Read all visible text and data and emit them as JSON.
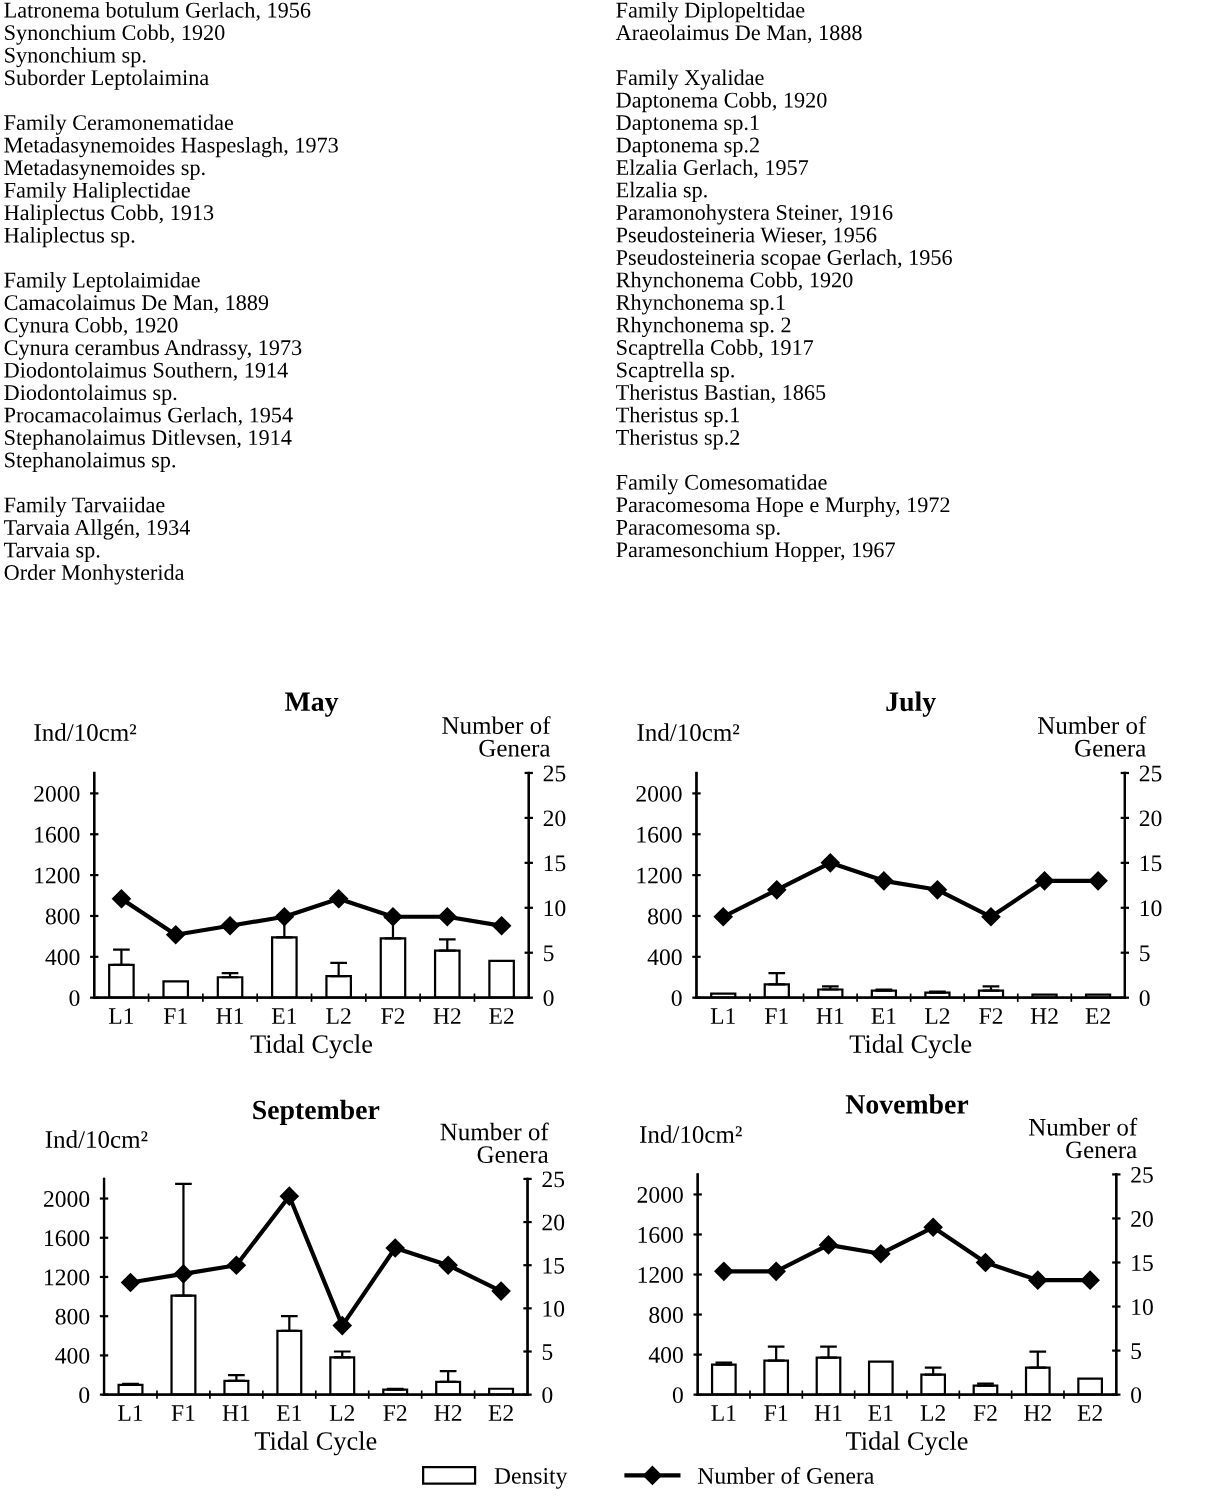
{
  "chart_data": [
    {
      "type": "other",
      "annotations": [
        "Latronema botulum Gerlach, 1956\nSynonchium Cobb, 1920\nSynonchium sp.\nSuborder Leptolaimina\n\nFamily Ceramonematidae\nMetadasynemoides Haspeslagh, 1973\nMetadasynemoides sp.\nFamily Haliplectidae\nHaliplectus Cobb, 1913\nHaliplectus sp.\n\nFamily Leptolaimidae\nCamacolaimus De Man, 1889\nCynura Cobb, 1920\nCynura cerambus Andrassy, 1973\nDiodontolaimus Southern, 1914\nDiodontolaimus sp.\nProcamacolaimus Gerlach, 1954\nStephanolaimus Ditlevsen, 1914\nStephanolaimus sp.\n\nFamily Tarvaiidae\nTarvaia Allgén, 1934\nTarvaia sp.\nOrder Monhysterida",
        "Family Diplopeltidae\nAraeolaimus De Man, 1888\n\nFamily Xyalidae\nDaptonema Cobb, 1920\nDaptonema sp.1\nDaptonema sp.2\nElzalia Gerlach, 1957\nElzalia sp.\nParamonohystera Steiner, 1916\nPseudosteineria Wieser, 1956\nPseudosteineria scopae Gerlach, 1956\nRhynchonema Cobb, 1920\nRhynchonema sp.1\nRhynchonema sp. 2\nScaptrella Cobb, 1917\nScaptrella sp.\nTheristus Bastian, 1865\nTheristus sp.1\nTheristus sp.2\n\nFamily Comesomatidae\nParacomesoma Hope e Murphy, 1972\nParacomesoma sp.\nParamesonchium Hopper, 1967"
      ]
    },
    {
      "type": "bar",
      "title": "May",
      "xlabel": "Tidal Cycle",
      "ylabel": "Ind/10cm²",
      "y2label": "Number of\nGenera",
      "categories": [
        "L1",
        "F1",
        "H1",
        "E1",
        "L2",
        "F2",
        "H2",
        "E2"
      ],
      "series": [
        {
          "name": "Density",
          "type": "bar",
          "color": "#ffffff",
          "values": [
            320,
            160,
            200,
            590,
            210,
            580,
            460,
            360
          ],
          "errors": [
            [
              320,
              470
            ],
            null,
            [
              200,
              240
            ],
            [
              590,
              800
            ],
            [
              210,
              340
            ],
            [
              580,
              780
            ],
            [
              460,
              570
            ],
            null
          ]
        },
        {
          "name": "Number of Genera",
          "type": "line",
          "axis": "y2",
          "color": "#000000",
          "values": [
            11,
            7,
            8,
            9,
            11,
            9,
            9,
            8
          ]
        }
      ],
      "ylim": [
        0,
        2200
      ],
      "yticks": [
        0,
        400,
        800,
        1200,
        1600,
        2000
      ],
      "y2lim": [
        0,
        25
      ],
      "y2ticks": [
        0,
        5,
        10,
        15,
        20,
        25
      ],
      "marker": "diamond",
      "line_style": "solid",
      "grid": false,
      "legend": "bottom"
    },
    {
      "type": "bar",
      "title": "July",
      "xlabel": "Tidal Cycle",
      "ylabel": "Ind/10cm²",
      "y2label": "Number of\nGenera",
      "categories": [
        "L1",
        "F1",
        "H1",
        "E1",
        "L2",
        "F2",
        "H2",
        "E2"
      ],
      "series": [
        {
          "type": "bar",
          "color": "#ffffff",
          "values": [
            40,
            130,
            80,
            70,
            50,
            70,
            30,
            30
          ],
          "errors": [
            null,
            [
              130,
              240
            ],
            [
              80,
              110
            ],
            [
              70,
              80
            ],
            [
              50,
              60
            ],
            [
              70,
              110
            ],
            null,
            null
          ]
        },
        {
          "type": "line",
          "axis": "y2",
          "color": "#000000",
          "values": [
            9,
            12,
            15,
            13,
            12,
            9,
            13,
            13
          ]
        }
      ],
      "ylim": [
        0,
        2200
      ],
      "yticks": [
        0,
        400,
        800,
        1200,
        1600,
        2000
      ],
      "y2lim": [
        0,
        25
      ],
      "y2ticks": [
        0,
        5,
        10,
        15,
        20,
        25
      ],
      "marker": "diamond",
      "line_style": "solid",
      "grid": false
    },
    {
      "type": "bar",
      "title": "September",
      "xlabel": "Tidal Cycle",
      "ylabel": "Ind/10cm²",
      "y2label": "Number of\nGenera",
      "categories": [
        "L1",
        "F1",
        "H1",
        "E1",
        "L2",
        "F2",
        "H2",
        "E2"
      ],
      "series": [
        {
          "type": "bar",
          "color": "#ffffff",
          "values": [
            100,
            1010,
            140,
            650,
            380,
            50,
            130,
            60
          ],
          "errors": [
            [
              100,
              110
            ],
            [
              1010,
              2150
            ],
            [
              140,
              200
            ],
            [
              650,
              800
            ],
            [
              380,
              440
            ],
            [
              50,
              60
            ],
            [
              130,
              240
            ],
            null
          ]
        },
        {
          "type": "line",
          "axis": "y2",
          "color": "#000000",
          "values": [
            13,
            14,
            15,
            23,
            8,
            17,
            15,
            12
          ]
        }
      ],
      "ylim": [
        0,
        2200
      ],
      "yticks": [
        0,
        400,
        800,
        1200,
        1600,
        2000
      ],
      "y2lim": [
        0,
        25
      ],
      "y2ticks": [
        0,
        5,
        10,
        15,
        20,
        25
      ],
      "marker": "diamond",
      "line_style": "solid",
      "grid": false
    },
    {
      "type": "bar",
      "title": "November",
      "xlabel": "Tidal Cycle",
      "ylabel": "Ind/10cm²",
      "y2label": "Number of\nGenera",
      "categories": [
        "L1",
        "F1",
        "H1",
        "E1",
        "L2",
        "F2",
        "H2",
        "E2"
      ],
      "series": [
        {
          "type": "bar",
          "color": "#ffffff",
          "values": [
            300,
            340,
            370,
            330,
            200,
            90,
            270,
            160
          ],
          "errors": [
            [
              300,
              320
            ],
            [
              340,
              480
            ],
            [
              370,
              480
            ],
            null,
            [
              200,
              270
            ],
            [
              90,
              110
            ],
            [
              270,
              430
            ],
            null
          ]
        },
        {
          "type": "line",
          "axis": "y2",
          "color": "#000000",
          "values": [
            14,
            14,
            17,
            16,
            19,
            15,
            13,
            13
          ]
        }
      ],
      "ylim": [
        0,
        2200
      ],
      "yticks": [
        0,
        400,
        800,
        1200,
        1600,
        2000
      ],
      "y2lim": [
        0,
        25
      ],
      "y2ticks": [
        0,
        5,
        10,
        15,
        20,
        25
      ],
      "marker": "diamond",
      "line_style": "solid",
      "grid": false
    }
  ]
}
